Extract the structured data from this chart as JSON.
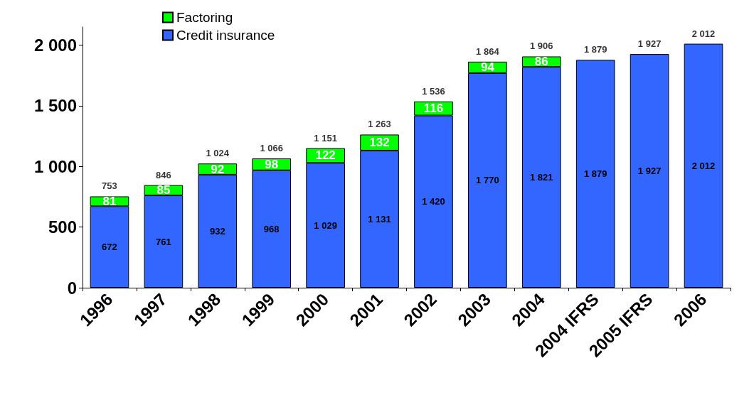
{
  "chart_data": {
    "type": "bar",
    "stacked": true,
    "categories": [
      "1996",
      "1997",
      "1998",
      "1999",
      "2000",
      "2001",
      "2002",
      "2003",
      "2004",
      "2004 IFRS",
      "2005 IFRS",
      "2006"
    ],
    "series": [
      {
        "name": "Credit insurance",
        "color": "#3366ff",
        "values": [
          672,
          761,
          932,
          968,
          1029,
          1131,
          1420,
          1770,
          1821,
          1879,
          1927,
          2012
        ],
        "value_labels": [
          "672",
          "761",
          "932",
          "968",
          "1 029",
          "1 131",
          "1 420",
          "1 770",
          "1 821",
          "1 879",
          "1 927",
          "2 012"
        ]
      },
      {
        "name": "Factoring",
        "color": "#00ff00",
        "values": [
          81,
          85,
          92,
          98,
          122,
          132,
          116,
          94,
          86,
          null,
          null,
          null
        ],
        "value_labels": [
          "81",
          "85",
          "92",
          "98",
          "122",
          "132",
          "116",
          "94",
          "86",
          null,
          null,
          null
        ]
      }
    ],
    "totals": [
      "753",
      "846",
      "1 024",
      "1 066",
      "1 151",
      "1 263",
      "1 536",
      "1 864",
      "1 906",
      "1 879",
      "1 927",
      "2 012"
    ],
    "ylim": [
      0,
      2150
    ],
    "yticks": [
      0,
      500,
      {
        "value": 1000,
        "label": "1 000"
      },
      {
        "value": 1500,
        "label": "1 500"
      },
      {
        "value": 2000,
        "label": "2 000"
      }
    ],
    "grid": false,
    "legend": "top left"
  }
}
